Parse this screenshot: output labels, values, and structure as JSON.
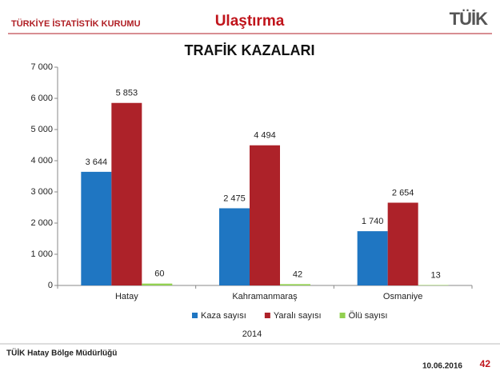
{
  "header": {
    "org": "TÜRKİYE İSTATİSTİK KURUMU",
    "section": "Ulaştırma",
    "logo": "TÜİK"
  },
  "chart_data": {
    "type": "bar",
    "title": "TRAFİK KAZALARI",
    "categories": [
      "Hatay",
      "Kahramanmaraş",
      "Osmaniye"
    ],
    "series": [
      {
        "name": "Kaza sayısı",
        "color": "#1f76c2",
        "values": [
          3644,
          2475,
          1740
        ],
        "value_labels": [
          "3 644",
          "2 475",
          "1 740"
        ]
      },
      {
        "name": "Yaralı sayısı",
        "color": "#ad2229",
        "values": [
          5853,
          4494,
          2654
        ],
        "value_labels": [
          "5 853",
          "4 494",
          "2 654"
        ]
      },
      {
        "name": "Ölü sayısı",
        "color": "#92d050",
        "values": [
          60,
          42,
          13
        ]
      }
    ],
    "xlabel": "2014",
    "ylim": [
      0,
      7000
    ],
    "yticks": [
      0,
      {
        "value": 1000,
        "label": "1 000"
      },
      {
        "value": 2000,
        "label": "2 000"
      },
      {
        "value": 3000,
        "label": "3 000"
      },
      {
        "value": 4000,
        "label": "4 000"
      },
      {
        "value": 5000,
        "label": "5 000"
      },
      {
        "value": 6000,
        "label": "6 000"
      },
      {
        "value": 7000,
        "label": "7 000"
      }
    ],
    "grid": false,
    "legend": "bottom"
  },
  "footer": {
    "office": "TÜİK Hatay Bölge Müdürlüğü",
    "date": "10.06.2016",
    "page": "42"
  }
}
